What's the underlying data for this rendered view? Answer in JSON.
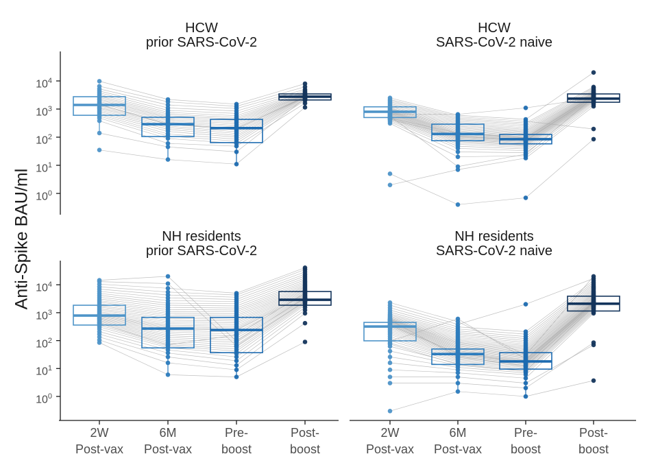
{
  "chart_data": {
    "type": "boxplot",
    "subtype": "paired-boxplot-with-subject-lines",
    "y_scale": "log10",
    "ylabel": "Anti-Spike BAU/ml",
    "y_tick_base": "10",
    "y_tick_exponents": [
      0,
      1,
      2,
      3,
      4
    ],
    "ylim": [
      0.2,
      50000
    ],
    "grid": false,
    "legend": "none",
    "categories": [
      [
        "2W",
        "Post-vax"
      ],
      [
        "6M",
        "Post-vax"
      ],
      [
        "Pre-",
        "boost"
      ],
      [
        "Post-",
        "boost"
      ]
    ],
    "colors": {
      "timepoints": [
        "#4e94c8",
        "#2d7cbd",
        "#1d6bb0",
        "#14355c"
      ],
      "subject_line": "#a9a9a9",
      "axis": "#1a1a1a",
      "tick_label": "#4d4d4d",
      "title": "#1a1a1a",
      "background": "#ffffff"
    },
    "panels": [
      {
        "id": "hcw-prior",
        "title": [
          "HCW",
          "prior SARS-CoV-2"
        ],
        "row": 0,
        "col": 0,
        "boxes": [
          {
            "q1": 600,
            "median": 1400,
            "q3": 2750,
            "whisker_lo": 140,
            "whisker_hi": 6500
          },
          {
            "q1": 105,
            "median": 290,
            "q3": 510,
            "whisker_lo": 16,
            "whisker_hi": 1100
          },
          {
            "q1": 64,
            "median": 210,
            "q3": 430,
            "whisker_lo": 11,
            "whisker_hi": 850
          },
          {
            "q1": 2100,
            "median": 2750,
            "q3": 3450,
            "whisker_lo": 1150,
            "whisker_hi": 5000
          }
        ],
        "values": [
          [
            35,
            140,
            380,
            480,
            560,
            640,
            720,
            820,
            930,
            1050,
            1150,
            1300,
            1400,
            1500,
            1650,
            1850,
            2100,
            2300,
            2600,
            2900,
            3300,
            3800,
            4400,
            5200,
            6500,
            9800
          ],
          [
            16,
            45,
            60,
            90,
            110,
            130,
            160,
            190,
            220,
            250,
            290,
            310,
            340,
            280,
            380,
            420,
            470,
            520,
            580,
            660,
            760,
            900,
            1100,
            1400,
            1800,
            2200
          ],
          [
            11,
            30,
            48,
            60,
            72,
            85,
            100,
            115,
            135,
            155,
            180,
            200,
            230,
            210,
            260,
            300,
            340,
            390,
            440,
            500,
            580,
            700,
            850,
            1050,
            1250,
            1500
          ],
          [
            1150,
            2400,
            1600,
            2000,
            2200,
            2300,
            2450,
            2550,
            2650,
            2700,
            2750,
            2800,
            2850,
            2600,
            2950,
            3050,
            3150,
            3250,
            3400,
            3550,
            3750,
            4000,
            4400,
            5000,
            6200,
            8000
          ]
        ]
      },
      {
        "id": "hcw-naive",
        "title": [
          "HCW",
          "SARS-CoV-2 naive"
        ],
        "row": 0,
        "col": 1,
        "boxes": [
          {
            "q1": 500,
            "median": 800,
            "q3": 1200,
            "whisker_lo": 310,
            "whisker_hi": 2500
          },
          {
            "q1": 75,
            "median": 130,
            "q3": 290,
            "whisker_lo": 20,
            "whisker_hi": 600
          },
          {
            "q1": 58,
            "median": 85,
            "q3": 125,
            "whisker_lo": 17,
            "whisker_hi": 215
          },
          {
            "q1": 1750,
            "median": 2350,
            "q3": 3450,
            "whisker_lo": 1250,
            "whisker_hi": 6100
          }
        ],
        "values": [
          [
            2,
            5,
            310,
            350,
            390,
            420,
            450,
            470,
            500,
            520,
            550,
            580,
            610,
            640,
            670,
            700,
            730,
            760,
            790,
            820,
            860,
            900,
            950,
            1000,
            1050,
            1100,
            1200,
            1300,
            1450,
            1600,
            1800,
            2000,
            2200,
            2500,
            640,
            560,
            480,
            430
          ],
          [
            7,
            0.4,
            20,
            30,
            40,
            48,
            56,
            63,
            70,
            76,
            82,
            88,
            94,
            100,
            106,
            112,
            120,
            128,
            136,
            145,
            155,
            168,
            182,
            200,
            220,
            245,
            270,
            300,
            335,
            375,
            420,
            470,
            530,
            600,
            650,
            9,
            140,
            110
          ],
          [
            18,
            0.7,
            22,
            28,
            33,
            38,
            43,
            48,
            52,
            56,
            60,
            64,
            68,
            72,
            76,
            80,
            84,
            88,
            93,
            98,
            104,
            112,
            120,
            130,
            142,
            155,
            170,
            190,
            215,
            245,
            280,
            320,
            370,
            430,
            1100,
            25,
            95,
            75
          ],
          [
            1250,
            85,
            1450,
            1600,
            1750,
            1850,
            1950,
            2050,
            2150,
            2250,
            2350,
            2400,
            2500,
            2550,
            2650,
            2700,
            2800,
            2900,
            3000,
            3100,
            3200,
            3300,
            3450,
            3600,
            3750,
            3900,
            4100,
            4400,
            4700,
            5100,
            5600,
            6100,
            195,
            20000,
            2450,
            2600,
            3050,
            2750
          ]
        ]
      },
      {
        "id": "nh-prior",
        "title": [
          "NH residents",
          "prior SARS-CoV-2"
        ],
        "row": 1,
        "col": 0,
        "boxes": [
          {
            "q1": 360,
            "median": 790,
            "q3": 1850,
            "whisker_lo": 85,
            "whisker_hi": 3600
          },
          {
            "q1": 55,
            "median": 270,
            "q3": 680,
            "whisker_lo": 6,
            "whisker_hi": 1700
          },
          {
            "q1": 37,
            "median": 240,
            "q3": 680,
            "whisker_lo": 5,
            "whisker_hi": 1600
          },
          {
            "q1": 1850,
            "median": 2900,
            "q3": 5750,
            "whisker_lo": 950,
            "whisker_hi": 11000
          }
        ],
        "values": [
          [
            85,
            105,
            135,
            170,
            210,
            260,
            310,
            360,
            410,
            450,
            490,
            530,
            570,
            610,
            650,
            700,
            750,
            800,
            850,
            900,
            1000,
            1100,
            1250,
            1400,
            1600,
            1800,
            2100,
            2400,
            2700,
            3100,
            3600,
            4200,
            4900,
            5800,
            7000,
            8500,
            10500,
            13000,
            14500,
            420
          ],
          [
            6,
            16,
            26,
            36,
            46,
            56,
            64,
            72,
            82,
            95,
            110,
            130,
            150,
            175,
            205,
            235,
            265,
            290,
            320,
            360,
            410,
            470,
            540,
            620,
            720,
            830,
            950,
            1100,
            1300,
            1550,
            1850,
            2200,
            2700,
            3400,
            4300,
            5500,
            7500,
            11000,
            20000,
            70
          ],
          [
            5,
            9,
            13,
            19,
            26,
            34,
            42,
            50,
            60,
            72,
            87,
            103,
            122,
            145,
            170,
            200,
            235,
            255,
            285,
            325,
            375,
            435,
            505,
            585,
            680,
            790,
            920,
            1070,
            1250,
            1470,
            1750,
            2100,
            2500,
            3000,
            3600,
            4300,
            5000,
            65,
            95,
            160
          ],
          [
            90,
            420,
            950,
            1250,
            1550,
            1850,
            2050,
            2250,
            2450,
            2650,
            2850,
            3000,
            3150,
            3300,
            3500,
            3700,
            3950,
            4200,
            4500,
            4850,
            5250,
            5700,
            6200,
            6800,
            7500,
            8300,
            9200,
            10200,
            11500,
            13000,
            15000,
            17500,
            20500,
            24000,
            29000,
            35000,
            41000,
            2550,
            3400,
            5000
          ]
        ]
      },
      {
        "id": "nh-naive",
        "title": [
          "NH residents",
          "SARS-CoV-2 naive"
        ],
        "row": 1,
        "col": 1,
        "boxes": [
          {
            "q1": 98,
            "median": 320,
            "q3": 450,
            "whisker_lo": 16,
            "whisker_hi": 920
          },
          {
            "q1": 14,
            "median": 33,
            "q3": 50,
            "whisker_lo": 1.5,
            "whisker_hi": 105
          },
          {
            "q1": 9.5,
            "median": 18,
            "q3": 37,
            "whisker_lo": 1,
            "whisker_hi": 86
          },
          {
            "q1": 1150,
            "median": 2100,
            "q3": 3900,
            "whisker_lo": 950,
            "whisker_hi": 8250
          }
        ],
        "values": [
          [
            0.3,
            3,
            5,
            9,
            16,
            26,
            42,
            62,
            82,
            100,
            120,
            140,
            165,
            190,
            215,
            245,
            275,
            305,
            330,
            355,
            380,
            405,
            425,
            445,
            465,
            485,
            505,
            525,
            545,
            565,
            585,
            615,
            650,
            700,
            760,
            830,
            920,
            1050,
            1250,
            1500,
            1850,
            2300,
            95,
            360,
            540,
            75
          ],
          [
            1.5,
            3,
            5,
            7,
            9,
            11,
            13,
            15,
            17,
            19,
            21,
            23,
            25,
            27,
            29,
            31,
            33,
            35,
            37,
            40,
            43,
            46,
            50,
            54,
            58,
            63,
            68,
            74,
            80,
            87,
            95,
            105,
            117,
            131,
            148,
            168,
            192,
            222,
            260,
            310,
            380,
            480,
            600,
            36,
            27,
            14
          ],
          [
            1,
            2,
            3,
            4.5,
            6,
            7,
            8,
            9,
            10,
            11,
            12,
            13,
            14,
            15,
            16,
            17,
            18,
            19,
            20,
            21,
            23,
            25,
            27,
            29,
            31,
            34,
            37,
            40,
            44,
            48,
            53,
            59,
            66,
            75,
            86,
            100,
            118,
            140,
            170,
            210,
            2000,
            30,
            22,
            16,
            12,
            8
          ],
          [
            3.7,
            85,
            70,
            950,
            1050,
            1150,
            1250,
            1350,
            1450,
            1550,
            1650,
            1750,
            1850,
            1950,
            2050,
            2120,
            2200,
            2280,
            2360,
            2450,
            2550,
            2680,
            2820,
            2980,
            3160,
            3370,
            3600,
            3870,
            4180,
            4530,
            4930,
            5400,
            5950,
            6600,
            7350,
            8250,
            9300,
            10600,
            12200,
            14200,
            16800,
            20000,
            2400,
            2150,
            1900,
            1700
          ]
        ]
      }
    ]
  }
}
